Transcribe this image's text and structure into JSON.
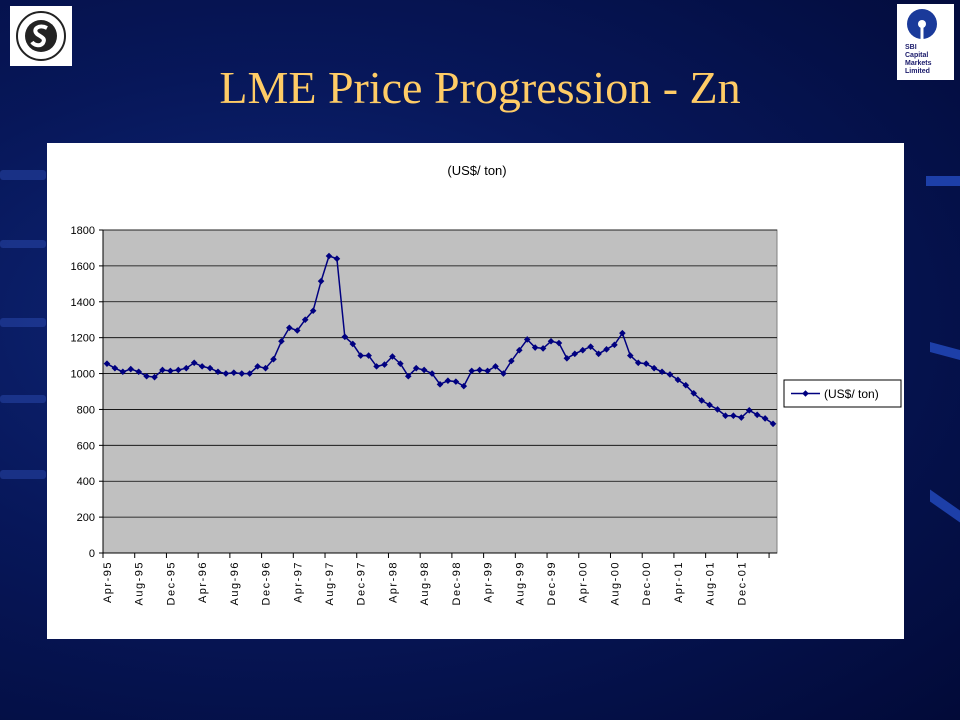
{
  "slide": {
    "title": "LME Price Progression - Zn",
    "logo_left": {
      "icon": "sterlite-logo",
      "text": "STERLITE"
    },
    "logo_right": {
      "icon": "sbi-logo",
      "text": "SBI\nCapital\nMarkets\nLimited"
    }
  },
  "colors": {
    "title": "#ffcc66",
    "plot_bg": "#c0c0c0",
    "series": "#000080"
  },
  "chart_data": {
    "type": "line",
    "title": "(US$/ ton)",
    "xlabel": "",
    "ylabel": "",
    "ylim": [
      0,
      1800
    ],
    "yticks": [
      0,
      200,
      400,
      600,
      800,
      1000,
      1200,
      1400,
      1600,
      1800
    ],
    "grid": true,
    "legend_position": "right",
    "categories": [
      "Apr-95",
      "May-95",
      "Jun-95",
      "Jul-95",
      "Aug-95",
      "Sep-95",
      "Oct-95",
      "Nov-95",
      "Dec-95",
      "Jan-96",
      "Feb-96",
      "Mar-96",
      "Apr-96",
      "May-96",
      "Jun-96",
      "Jul-96",
      "Aug-96",
      "Sep-96",
      "Oct-96",
      "Nov-96",
      "Dec-96",
      "Jan-97",
      "Feb-97",
      "Mar-97",
      "Apr-97",
      "May-97",
      "Jun-97",
      "Jul-97",
      "Aug-97",
      "Sep-97",
      "Oct-97",
      "Nov-97",
      "Dec-97",
      "Jan-98",
      "Feb-98",
      "Mar-98",
      "Apr-98",
      "May-98",
      "Jun-98",
      "Jul-98",
      "Aug-98",
      "Sep-98",
      "Oct-98",
      "Nov-98",
      "Dec-98",
      "Jan-99",
      "Feb-99",
      "Mar-99",
      "Apr-99",
      "May-99",
      "Jun-99",
      "Jul-99",
      "Aug-99",
      "Sep-99",
      "Oct-99",
      "Nov-99",
      "Dec-99",
      "Jan-00",
      "Feb-00",
      "Mar-00",
      "Apr-00",
      "May-00",
      "Jun-00",
      "Jul-00",
      "Aug-00",
      "Sep-00",
      "Oct-00",
      "Nov-00",
      "Dec-00",
      "Jan-01",
      "Feb-01",
      "Mar-01",
      "Apr-01",
      "May-01",
      "Jun-01",
      "Jul-01",
      "Aug-01",
      "Sep-01",
      "Oct-01",
      "Nov-01",
      "Dec-01",
      "Jan-02",
      "Feb-02",
      "Mar-02",
      "Apr-02"
    ],
    "tick_labels": [
      "Apr-95",
      "Aug-95",
      "Dec-95",
      "Apr-96",
      "Aug-96",
      "Dec-96",
      "Apr-97",
      "Aug-97",
      "Dec-97",
      "Apr-98",
      "Aug-98",
      "Dec-98",
      "Apr-99",
      "Aug-99",
      "Dec-99",
      "Apr-00",
      "Aug-00",
      "Dec-00",
      "Apr-01",
      "Aug-01",
      "Dec-01"
    ],
    "series": [
      {
        "name": "(US$/ ton)",
        "values": [
          1055,
          1030,
          1010,
          1025,
          1010,
          985,
          980,
          1020,
          1015,
          1020,
          1030,
          1060,
          1040,
          1030,
          1010,
          1000,
          1005,
          1000,
          1000,
          1040,
          1030,
          1080,
          1180,
          1255,
          1240,
          1300,
          1350,
          1515,
          1655,
          1640,
          1205,
          1165,
          1100,
          1100,
          1040,
          1050,
          1095,
          1055,
          985,
          1030,
          1020,
          1000,
          940,
          960,
          955,
          930,
          1015,
          1020,
          1015,
          1040,
          1000,
          1070,
          1130,
          1190,
          1145,
          1140,
          1180,
          1170,
          1085,
          1110,
          1130,
          1150,
          1110,
          1135,
          1160,
          1225,
          1100,
          1060,
          1055,
          1030,
          1010,
          995,
          965,
          935,
          890,
          850,
          825,
          800,
          765,
          765,
          755,
          795,
          770,
          750,
          720
        ]
      }
    ]
  }
}
